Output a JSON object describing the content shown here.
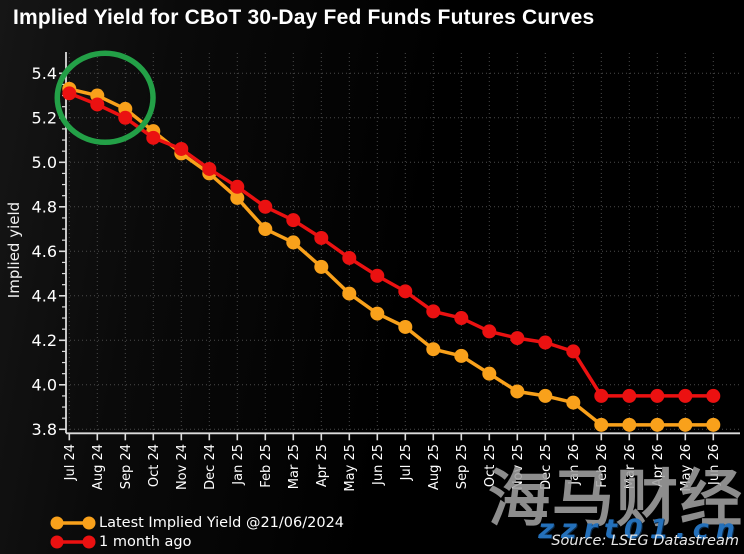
{
  "title": "Implied Yield for CBoT 30-Day Fed Funds Futures Curves",
  "source": "Source: LSEG Datastream",
  "watermark": {
    "cjk": "海马财经",
    "site": "zzrt01.cn"
  },
  "colors": {
    "background": "#000000",
    "axis": "#dcdcdc",
    "grid": "#4a4a4a",
    "tick_text": "#ffffff",
    "latest_series": "#f9a11b",
    "month_ago_series": "#eb1111",
    "annotation_green": "#23a047",
    "watermark_gray": "#a0a0a0",
    "watermark_blue": "#2470ba"
  },
  "chart_data": {
    "type": "line",
    "title": "Implied Yield for CBoT 30-Day Fed Funds Futures Curves",
    "xlabel": "",
    "ylabel": "Implied yield",
    "ylim": [
      3.8,
      5.4
    ],
    "ytick_step": 0.2,
    "ytick_minor_step": 0.05,
    "grid": true,
    "legend_position": "bottom-left",
    "categories": [
      "Jul 24",
      "Aug 24",
      "Sep 24",
      "Oct 24",
      "Nov 24",
      "Dec 24",
      "Jan 25",
      "Feb 25",
      "Mar 25",
      "Apr 25",
      "May 25",
      "Jun 25",
      "Jul 25",
      "Aug 25",
      "Sep 25",
      "Oct 25",
      "Nov 25",
      "Dec 25",
      "Jan 26",
      "Feb 26",
      "Mar 26",
      "Apr 26",
      "May 26",
      "Jun 26"
    ],
    "series": [
      {
        "name": "Latest Implied Yield @21/06/2024",
        "color": "#f9a11b",
        "values": [
          5.33,
          5.3,
          5.24,
          5.14,
          5.04,
          4.95,
          4.84,
          4.7,
          4.64,
          4.53,
          4.41,
          4.32,
          4.26,
          4.16,
          4.13,
          4.05,
          3.97,
          3.95,
          3.92,
          3.82,
          3.82,
          3.82,
          3.82,
          3.82
        ]
      },
      {
        "name": "1 month ago",
        "color": "#eb1111",
        "values": [
          5.31,
          5.26,
          5.2,
          5.11,
          5.06,
          4.97,
          4.89,
          4.8,
          4.74,
          4.66,
          4.57,
          4.49,
          4.42,
          4.33,
          4.3,
          4.24,
          4.21,
          4.19,
          4.15,
          3.95,
          3.95,
          3.95,
          3.95,
          3.95
        ]
      }
    ],
    "annotation": {
      "shape": "ellipse",
      "color": "#23a047",
      "center_category": "Aug 24",
      "center_category_index": 1.28,
      "center_value": 5.29,
      "rx_months": 1.71,
      "ry_units": 0.2,
      "meaning": "green circle highlighting Jul 24 - Sep 24 front contracts"
    }
  }
}
